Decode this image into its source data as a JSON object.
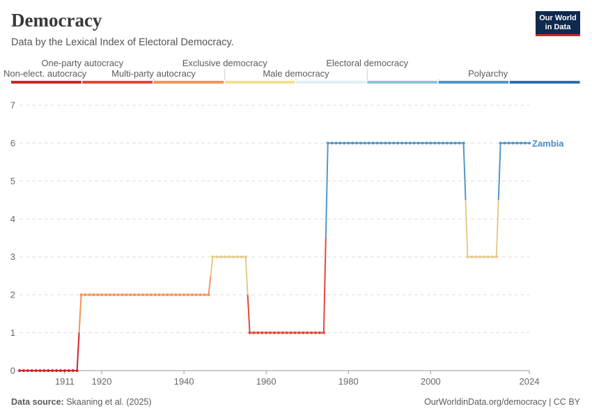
{
  "header": {
    "title": "Democracy",
    "subtitle": "Data by the Lexical Index of Electoral Democracy.",
    "logo_line1": "Our World",
    "logo_line2": "in Data"
  },
  "footer": {
    "source_label": "Data source:",
    "source_text": " Skaaning et al. (2025)",
    "right_text": "OurWorldinData.org/democracy | CC BY"
  },
  "legend": {
    "bins": [
      {
        "label": "Non-elect. autocracy",
        "color": "#c8262a",
        "row": "lower"
      },
      {
        "label": "One-party autocracy",
        "color": "#e0493b",
        "row": "upper"
      },
      {
        "label": "Multi-party autocracy",
        "color": "#f3955b",
        "row": "lower"
      },
      {
        "label": "Exclusive democracy",
        "color": "#f7dd8c",
        "row": "upper"
      },
      {
        "label": "Male democracy",
        "color": "#e1f0f9",
        "row": "lower"
      },
      {
        "label": "Electoral democracy",
        "color": "#93c0d9",
        "row": "upper"
      },
      {
        "label": "Polyarchy",
        "color": "#5296c6",
        "row": "lower"
      },
      {
        "label": "",
        "color": "#2f6fae",
        "row": "lower"
      }
    ]
  },
  "chart_data": {
    "type": "line",
    "x_axis": {
      "ticks": [
        "1911",
        "1920",
        "1940",
        "1960",
        "1980",
        "2000",
        "2024"
      ],
      "range": [
        1900,
        2024
      ]
    },
    "y_axis": {
      "ticks": [
        "0",
        "1",
        "2",
        "3",
        "4",
        "5",
        "6",
        "7"
      ],
      "range": [
        0,
        7
      ]
    },
    "grid": "horizontal dashed",
    "series": [
      {
        "name": "Zambia",
        "segments": [
          {
            "x_start": 1900,
            "x_end": 1914,
            "value": 0
          },
          {
            "x_start": 1915,
            "x_end": 1946,
            "value": 2
          },
          {
            "x_start": 1947,
            "x_end": 1955,
            "value": 3
          },
          {
            "x_start": 1956,
            "x_end": 1974,
            "value": 1
          },
          {
            "x_start": 1975,
            "x_end": 2008,
            "value": 6
          },
          {
            "x_start": 2009,
            "x_end": 2016,
            "value": 3
          },
          {
            "x_start": 2017,
            "x_end": 2024,
            "value": 6
          }
        ]
      }
    ],
    "value_colors": {
      "0": "#c8262a",
      "1": "#e0493b",
      "2": "#f3955b",
      "3": "#e6c98a",
      "4": "#a9cde2",
      "5": "#93c0d9",
      "6": "#5296c6",
      "7": "#2f6fae"
    },
    "end_label_color": "#4a89c0"
  }
}
